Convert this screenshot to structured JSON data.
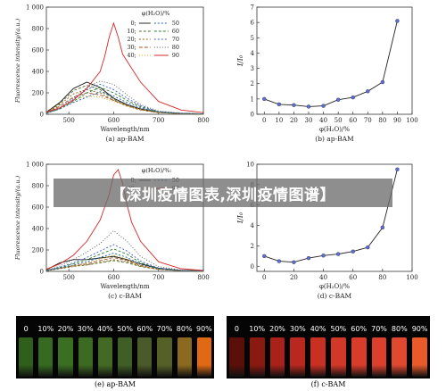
{
  "chart_data": [
    {
      "type": "line",
      "panel_caption": "(a) ap-BAM",
      "xlabel": "Wavelength/nm",
      "ylabel": "Fluorescence intensity/(a.u.)",
      "xlim": [
        450,
        800
      ],
      "ylim": [
        0,
        1000
      ],
      "xticks": [
        "500",
        "600",
        "700",
        "800"
      ],
      "yticks": [
        "0",
        "200",
        "400",
        "600",
        "800",
        "1 000"
      ],
      "legend_title": "φ(H₂O)/%",
      "legend_labels": [
        "0;",
        "50",
        "10;",
        "60",
        "20;",
        "70",
        "30;",
        "80",
        "40;",
        "90"
      ],
      "series": [
        {
          "name": "0",
          "color": "#111111",
          "dash": "",
          "x": [
            450,
            480,
            510,
            540,
            570,
            600,
            630,
            660,
            700,
            750,
            800
          ],
          "y": [
            20,
            110,
            240,
            300,
            250,
            150,
            90,
            50,
            20,
            8,
            3
          ]
        },
        {
          "name": "10",
          "color": "#556b2f",
          "dash": "3,2",
          "x": [
            450,
            480,
            510,
            540,
            570,
            600,
            630,
            660,
            700,
            750,
            800
          ],
          "y": [
            20,
            100,
            220,
            270,
            230,
            140,
            80,
            45,
            18,
            7,
            3
          ]
        },
        {
          "name": "20",
          "color": "#8b6914",
          "dash": "2,2",
          "x": [
            450,
            480,
            510,
            540,
            570,
            600,
            630,
            660,
            700,
            750,
            800
          ],
          "y": [
            18,
            90,
            190,
            230,
            200,
            130,
            75,
            40,
            16,
            6,
            2
          ]
        },
        {
          "name": "30",
          "color": "#a0522d",
          "dash": "4,2",
          "x": [
            450,
            480,
            510,
            540,
            570,
            600,
            630,
            660,
            700,
            750,
            800
          ],
          "y": [
            15,
            75,
            160,
            200,
            180,
            130,
            80,
            42,
            15,
            6,
            2
          ]
        },
        {
          "name": "40",
          "color": "#c8a000",
          "dash": "1,2",
          "x": [
            450,
            480,
            510,
            540,
            570,
            600,
            630,
            660,
            700,
            750,
            800
          ],
          "y": [
            12,
            60,
            130,
            170,
            160,
            120,
            80,
            45,
            15,
            6,
            2
          ]
        },
        {
          "name": "50",
          "color": "#1f5fa8",
          "dash": "2,2",
          "x": [
            450,
            480,
            510,
            540,
            570,
            600,
            630,
            660,
            700,
            750,
            800
          ],
          "y": [
            10,
            50,
            110,
            160,
            210,
            170,
            110,
            60,
            20,
            8,
            3
          ]
        },
        {
          "name": "60",
          "color": "#2e7d32",
          "dash": "3,2",
          "x": [
            450,
            480,
            510,
            540,
            570,
            600,
            630,
            660,
            700,
            750,
            800
          ],
          "y": [
            10,
            50,
            120,
            200,
            250,
            200,
            130,
            70,
            22,
            8,
            3
          ]
        },
        {
          "name": "70",
          "color": "#3a5fcd",
          "dash": "2,2",
          "x": [
            450,
            480,
            510,
            540,
            570,
            600,
            630,
            660,
            700,
            750,
            800
          ],
          "y": [
            10,
            55,
            140,
            230,
            280,
            230,
            150,
            80,
            25,
            9,
            3
          ]
        },
        {
          "name": "80",
          "color": "#555555",
          "dash": "1,2",
          "x": [
            450,
            480,
            510,
            540,
            570,
            600,
            630,
            660,
            700,
            750,
            800
          ],
          "y": [
            15,
            60,
            150,
            250,
            310,
            280,
            180,
            90,
            30,
            10,
            4
          ]
        },
        {
          "name": "90",
          "color": "#d62728",
          "dash": "",
          "x": [
            450,
            480,
            510,
            540,
            570,
            580,
            590,
            600,
            610,
            620,
            640,
            660,
            700,
            750,
            800
          ],
          "y": [
            20,
            60,
            130,
            240,
            400,
            540,
            720,
            850,
            720,
            560,
            430,
            300,
            120,
            40,
            15
          ]
        }
      ]
    },
    {
      "type": "line",
      "panel_caption": "(b) ap-BAM",
      "xlabel": "φ(H₂O)/%",
      "ylabel": "I/I₀",
      "xlim": [
        -5,
        100
      ],
      "ylim": [
        0,
        7
      ],
      "xticks": [
        "0",
        "10",
        "20",
        "30",
        "40",
        "50",
        "60",
        "70",
        "80",
        "90",
        "100"
      ],
      "yticks": [
        "0",
        "1",
        "2",
        "3",
        "4",
        "5",
        "6",
        "7"
      ],
      "series": [
        {
          "name": "",
          "color": "#222222",
          "marker_color": "#5b6ed6",
          "x": [
            0,
            10,
            20,
            30,
            40,
            50,
            60,
            70,
            80,
            90
          ],
          "y": [
            1.0,
            0.65,
            0.6,
            0.5,
            0.55,
            0.95,
            1.1,
            1.5,
            2.1,
            6.1
          ]
        }
      ]
    },
    {
      "type": "line",
      "panel_caption": "(c) c-BAM",
      "xlabel": "Wavelength/nm",
      "ylabel": "Fluorescence intensity/(a.u.)",
      "xlim": [
        450,
        800
      ],
      "ylim": [
        0,
        1000
      ],
      "xticks": [
        "500",
        "600",
        "700",
        "800"
      ],
      "yticks": [
        "0",
        "200",
        "400",
        "600",
        "800",
        "1 000"
      ],
      "legend_title": "φ(H₂O)/%:",
      "legend_labels": [
        "0;",
        "50",
        "40;",
        "90"
      ],
      "series": [
        {
          "name": "0",
          "color": "#111111",
          "dash": "",
          "x": [
            450,
            480,
            510,
            540,
            570,
            600,
            630,
            660,
            700,
            750,
            800
          ],
          "y": [
            15,
            80,
            110,
            110,
            125,
            140,
            110,
            70,
            30,
            10,
            4
          ]
        },
        {
          "name": "10",
          "color": "#556b2f",
          "dash": "3,2",
          "x": [
            450,
            480,
            510,
            540,
            570,
            600,
            630,
            660,
            700,
            750,
            800
          ],
          "y": [
            8,
            30,
            50,
            60,
            80,
            100,
            80,
            45,
            18,
            6,
            2
          ]
        },
        {
          "name": "20",
          "color": "#8b6914",
          "dash": "2,2",
          "x": [
            450,
            480,
            510,
            540,
            570,
            600,
            630,
            660,
            700,
            750,
            800
          ],
          "y": [
            6,
            25,
            45,
            60,
            85,
            110,
            90,
            50,
            20,
            6,
            2
          ]
        },
        {
          "name": "30",
          "color": "#a0522d",
          "dash": "4,2",
          "x": [
            450,
            480,
            510,
            540,
            570,
            600,
            630,
            660,
            700,
            750,
            800
          ],
          "y": [
            6,
            28,
            50,
            70,
            100,
            130,
            100,
            55,
            20,
            6,
            2
          ]
        },
        {
          "name": "40",
          "color": "#c8a000",
          "dash": "1,2",
          "x": [
            450,
            480,
            510,
            540,
            570,
            600,
            630,
            660,
            700,
            750,
            800
          ],
          "y": [
            6,
            30,
            55,
            80,
            115,
            150,
            115,
            60,
            22,
            7,
            2
          ]
        },
        {
          "name": "50",
          "color": "#1f5fa8",
          "dash": "2,2",
          "x": [
            450,
            480,
            510,
            540,
            570,
            600,
            630,
            660,
            700,
            750,
            800
          ],
          "y": [
            6,
            30,
            60,
            90,
            130,
            170,
            130,
            65,
            24,
            7,
            3
          ]
        },
        {
          "name": "60",
          "color": "#2e7d32",
          "dash": "3,2",
          "x": [
            450,
            480,
            510,
            540,
            570,
            600,
            630,
            660,
            700,
            750,
            800
          ],
          "y": [
            8,
            35,
            70,
            110,
            160,
            210,
            160,
            80,
            28,
            8,
            3
          ]
        },
        {
          "name": "70",
          "color": "#3a5fcd",
          "dash": "2,2",
          "x": [
            450,
            480,
            510,
            540,
            570,
            600,
            630,
            660,
            700,
            750,
            800
          ],
          "y": [
            8,
            40,
            80,
            130,
            190,
            250,
            190,
            95,
            32,
            9,
            3
          ]
        },
        {
          "name": "80",
          "color": "#555555",
          "dash": "1,2",
          "x": [
            450,
            480,
            510,
            540,
            570,
            600,
            630,
            660,
            700,
            750,
            800
          ],
          "y": [
            10,
            50,
            110,
            180,
            260,
            380,
            280,
            140,
            45,
            12,
            4
          ]
        },
        {
          "name": "90",
          "color": "#d62728",
          "dash": "",
          "x": [
            450,
            480,
            510,
            540,
            570,
            590,
            600,
            610,
            620,
            630,
            640,
            660,
            700,
            750,
            800
          ],
          "y": [
            20,
            70,
            150,
            280,
            480,
            720,
            900,
            950,
            820,
            620,
            460,
            280,
            90,
            25,
            8
          ]
        }
      ]
    },
    {
      "type": "line",
      "panel_caption": "(d) c-BAM",
      "xlabel": "φ(H₂O)/%",
      "ylabel": "I/I₀",
      "xlim": [
        -5,
        100
      ],
      "ylim": [
        -0.5,
        10
      ],
      "xticks": [
        "0",
        "20",
        "40",
        "60",
        "80",
        "100"
      ],
      "yticks": [
        "0",
        "2",
        "4",
        "6",
        "8",
        "10"
      ],
      "series": [
        {
          "name": "",
          "color": "#222222",
          "marker_color": "#5b6ed6",
          "x": [
            0,
            10,
            20,
            30,
            40,
            50,
            60,
            70,
            80,
            90
          ],
          "y": [
            1.0,
            0.5,
            0.4,
            0.8,
            1.05,
            1.2,
            1.45,
            1.85,
            3.8,
            9.5
          ]
        }
      ]
    }
  ],
  "photos": {
    "e": {
      "caption": "(e) ap-BAM",
      "labels": [
        "0",
        "10%",
        "20%",
        "30%",
        "40%",
        "50%",
        "60%",
        "70%",
        "80%",
        "90%"
      ],
      "colors": [
        "#2f5f1a",
        "#356a20",
        "#3a6e22",
        "#3d6a22",
        "#436a25",
        "#3f5f26",
        "#4a5a2a",
        "#556028",
        "#8a6a20",
        "#e06a14"
      ]
    },
    "f": {
      "caption": "(f) c-BAM",
      "labels": [
        "0",
        "10%",
        "20%",
        "30%",
        "40%",
        "50%",
        "60%",
        "70%",
        "80%",
        "90%"
      ],
      "colors": [
        "#5a1008",
        "#8a1a10",
        "#a8221a",
        "#b8281e",
        "#c83022",
        "#d23828",
        "#d83c2a",
        "#dc402c",
        "#e04830",
        "#e85a2a"
      ]
    }
  },
  "banner": {
    "text": "【深圳疫情图表,深圳疫情图谱】"
  }
}
